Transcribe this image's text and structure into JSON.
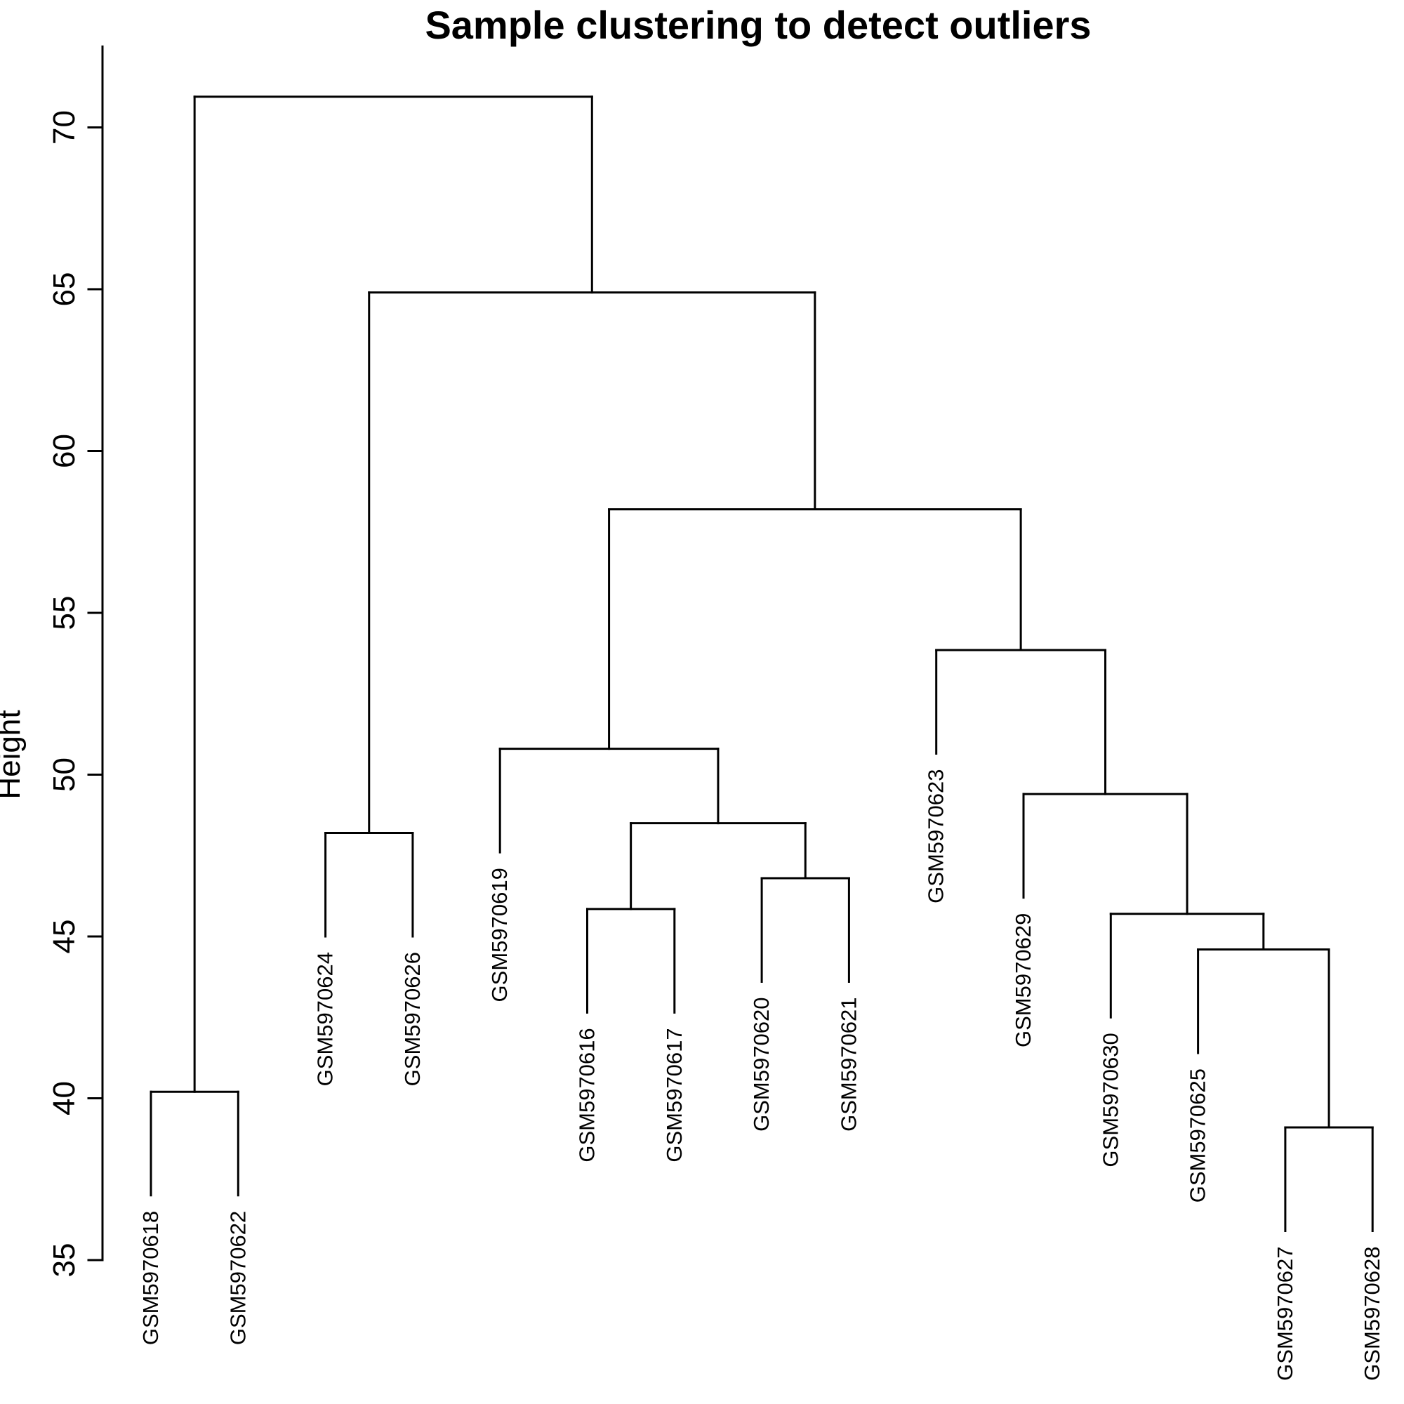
{
  "chart_data": {
    "type": "dendrogram",
    "title": "Sample clustering to detect outliers",
    "xlabel": "",
    "ylabel": "Height",
    "ylim": [
      35,
      72.5
    ],
    "yticks": [
      35,
      40,
      45,
      50,
      55,
      60,
      65,
      70
    ],
    "ytick_labels": [
      "35",
      "40",
      "45",
      "50",
      "55",
      "60",
      "65",
      "70"
    ],
    "grid": false,
    "leaves": [
      "GSM5970618",
      "GSM5970622",
      "GSM5970624",
      "GSM5970626",
      "GSM5970619",
      "GSM5970616",
      "GSM5970617",
      "GSM5970620",
      "GSM5970621",
      "GSM5970623",
      "GSM5970629",
      "GSM5970630",
      "GSM5970625",
      "GSM5970627",
      "GSM5970628"
    ],
    "merges": [
      {
        "id": "m1",
        "height": 40.2,
        "children": [
          "GSM5970618",
          "GSM5970622"
        ]
      },
      {
        "id": "m2",
        "height": 48.2,
        "children": [
          "GSM5970624",
          "GSM5970626"
        ]
      },
      {
        "id": "m3",
        "height": 45.85,
        "children": [
          "GSM5970616",
          "GSM5970617"
        ]
      },
      {
        "id": "m4",
        "height": 46.8,
        "children": [
          "GSM5970620",
          "GSM5970621"
        ]
      },
      {
        "id": "m5",
        "height": 48.5,
        "children": [
          "m3",
          "m4"
        ]
      },
      {
        "id": "m6",
        "height": 50.8,
        "children": [
          "GSM5970619",
          "m5"
        ]
      },
      {
        "id": "m7",
        "height": 39.1,
        "children": [
          "GSM5970627",
          "GSM5970628"
        ]
      },
      {
        "id": "m8",
        "height": 44.6,
        "children": [
          "GSM5970625",
          "m7"
        ]
      },
      {
        "id": "m9",
        "height": 45.7,
        "children": [
          "GSM5970630",
          "m8"
        ]
      },
      {
        "id": "m10",
        "height": 49.4,
        "children": [
          "GSM5970629",
          "m9"
        ]
      },
      {
        "id": "m11",
        "height": 53.85,
        "children": [
          "GSM5970623",
          "m10"
        ]
      },
      {
        "id": "m12",
        "height": 58.2,
        "children": [
          "m6",
          "m11"
        ]
      },
      {
        "id": "m13",
        "height": 64.9,
        "children": [
          "m2",
          "m12"
        ]
      },
      {
        "id": "m14",
        "height": 70.95,
        "children": [
          "m1",
          "m13"
        ]
      }
    ],
    "leaf_heights": {
      "GSM5970618": 37.0,
      "GSM5970622": 37.0,
      "GSM5970624": 45.0,
      "GSM5970626": 45.0,
      "GSM5970619": 47.6,
      "GSM5970616": 42.65,
      "GSM5970617": 42.65,
      "GSM5970620": 43.6,
      "GSM5970621": 43.6,
      "GSM5970623": 50.65,
      "GSM5970629": 46.2,
      "GSM5970630": 42.5,
      "GSM5970625": 41.4,
      "GSM5970627": 35.9,
      "GSM5970628": 35.9
    }
  }
}
